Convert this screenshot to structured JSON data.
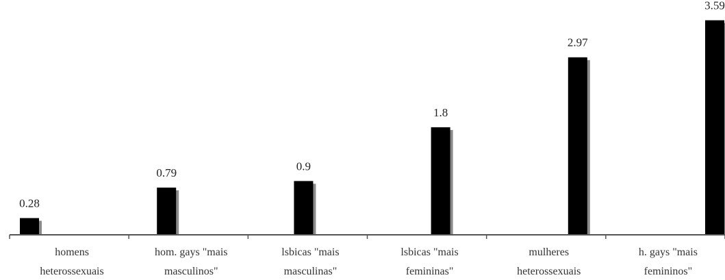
{
  "chart_data": {
    "type": "bar",
    "categories": [
      [
        "homens",
        "heterossexuais"
      ],
      [
        "hom. gays \"mais",
        "masculinos\""
      ],
      [
        "lsbicas \"mais",
        "masculinas\""
      ],
      [
        "lsbicas \"mais",
        "femininas\""
      ],
      [
        "mulheres",
        "heterossexuais"
      ],
      [
        "h. gays \"mais",
        "femininos\""
      ]
    ],
    "values": [
      0.28,
      0.79,
      0.9,
      1.8,
      2.97,
      3.59
    ],
    "value_labels": [
      "0.28",
      "0.79",
      "0.9",
      "1.8",
      "2.97",
      "3.59"
    ],
    "ylim": [
      0,
      3.7
    ],
    "grid": false,
    "legend": "none",
    "colors": {
      "bar": "#000000",
      "shadow": "#8a8a8a",
      "axis": "#555555",
      "text": "#222222"
    }
  }
}
